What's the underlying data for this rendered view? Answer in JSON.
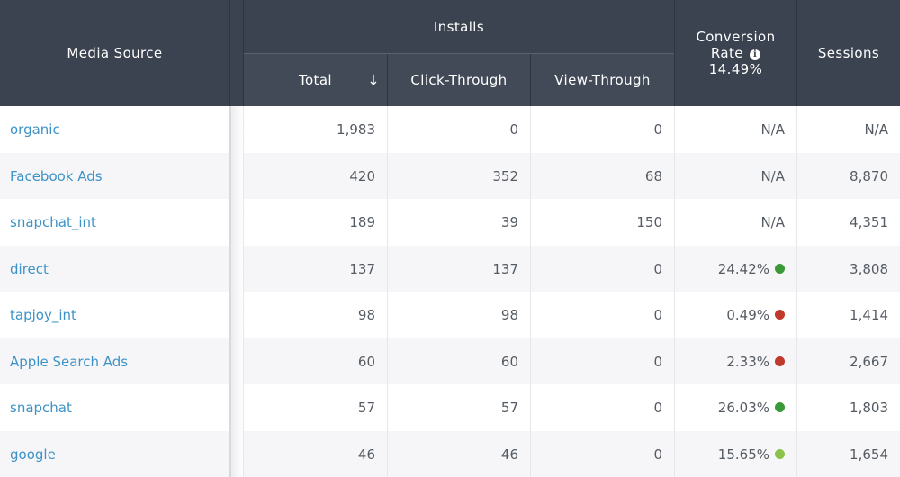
{
  "header": {
    "media_source": "Media Source",
    "installs": "Installs",
    "total": "Total",
    "sort_icon": "↓",
    "click_through": "Click-Through",
    "view_through": "View-Through",
    "conversion_rate_line1": "Conversion",
    "conversion_rate_line2": "Rate",
    "conversion_rate_value": "14.49%",
    "info_icon": "info-icon",
    "sessions": "Sessions"
  },
  "colors": {
    "header_bg": "#3b4350",
    "link": "#3d93c8",
    "dot_green": "#3a9a3a",
    "dot_red": "#c0392b",
    "dot_light_green": "#8bc34a"
  },
  "rows": [
    {
      "source": "organic",
      "total": "1,983",
      "click": "0",
      "view": "0",
      "conv": "N/A",
      "dot": "",
      "sessions": "N/A"
    },
    {
      "source": "Facebook Ads",
      "total": "420",
      "click": "352",
      "view": "68",
      "conv": "N/A",
      "dot": "",
      "sessions": "8,870"
    },
    {
      "source": "snapchat_int",
      "total": "189",
      "click": "39",
      "view": "150",
      "conv": "N/A",
      "dot": "",
      "sessions": "4,351"
    },
    {
      "source": "direct",
      "total": "137",
      "click": "137",
      "view": "0",
      "conv": "24.42%",
      "dot": "green",
      "sessions": "3,808"
    },
    {
      "source": "tapjoy_int",
      "total": "98",
      "click": "98",
      "view": "0",
      "conv": "0.49%",
      "dot": "red",
      "sessions": "1,414"
    },
    {
      "source": "Apple Search Ads",
      "total": "60",
      "click": "60",
      "view": "0",
      "conv": "2.33%",
      "dot": "red",
      "sessions": "2,667"
    },
    {
      "source": "snapchat",
      "total": "57",
      "click": "57",
      "view": "0",
      "conv": "26.03%",
      "dot": "green",
      "sessions": "1,803"
    },
    {
      "source": "google",
      "total": "46",
      "click": "46",
      "view": "0",
      "conv": "15.65%",
      "dot": "light-green",
      "sessions": "1,654"
    }
  ]
}
